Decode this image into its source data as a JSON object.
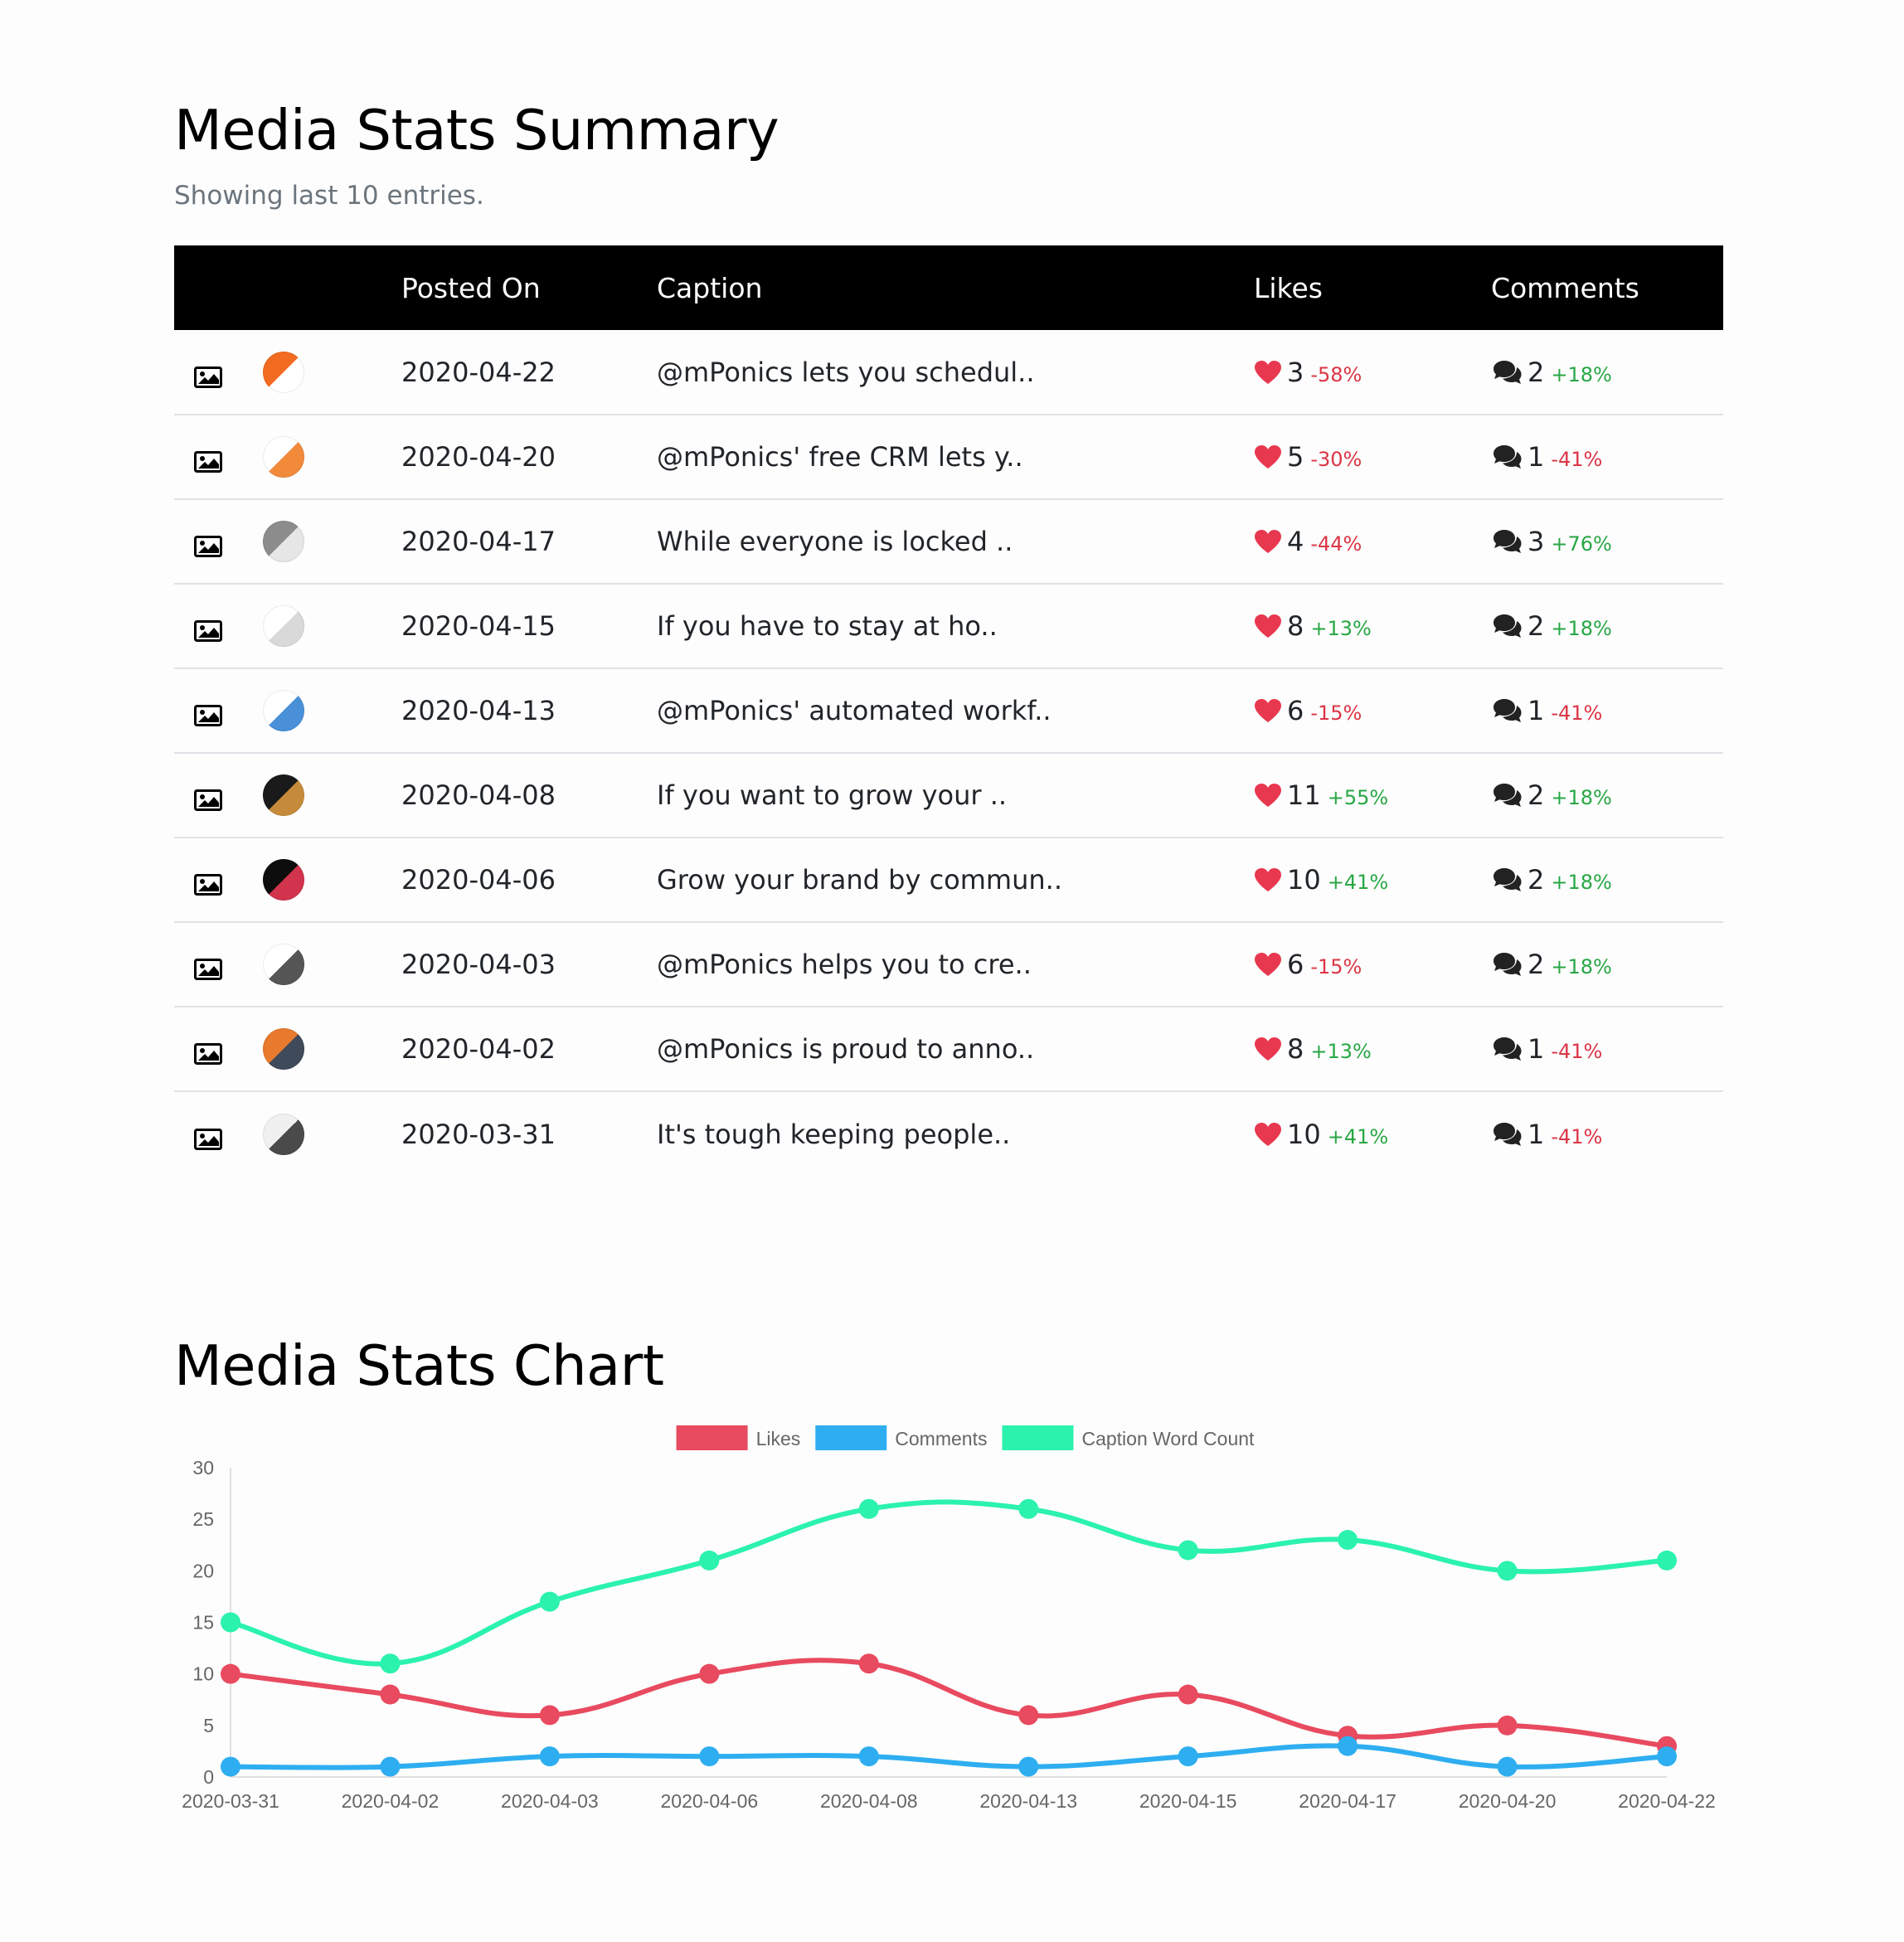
{
  "summary": {
    "title": "Media Stats Summary",
    "subtitle": "Showing last 10 entries."
  },
  "table": {
    "headers": {
      "type": "",
      "thumb": "",
      "posted_on": "Posted On",
      "caption": "Caption",
      "likes": "Likes",
      "comments": "Comments"
    },
    "rows": [
      {
        "date": "2020-04-22",
        "caption": "@mPonics lets you schedul..",
        "likes": "3",
        "likes_pct": "-58%",
        "comments": "2",
        "comments_pct": "+18%",
        "thumb_colors": [
          "#f26b21",
          "#ffffff"
        ]
      },
      {
        "date": "2020-04-20",
        "caption": "@mPonics' free CRM lets y..",
        "likes": "5",
        "likes_pct": "-30%",
        "comments": "1",
        "comments_pct": "-41%",
        "thumb_colors": [
          "#ffffff",
          "#f28a3c"
        ]
      },
      {
        "date": "2020-04-17",
        "caption": "While everyone is locked ..",
        "likes": "4",
        "likes_pct": "-44%",
        "comments": "3",
        "comments_pct": "+76%",
        "thumb_colors": [
          "#8c8c8c",
          "#e6e6e6"
        ]
      },
      {
        "date": "2020-04-15",
        "caption": "If you have to stay at ho..",
        "likes": "8",
        "likes_pct": "+13%",
        "comments": "2",
        "comments_pct": "+18%",
        "thumb_colors": [
          "#ffffff",
          "#d9d9d9"
        ]
      },
      {
        "date": "2020-04-13",
        "caption": "@mPonics' automated workf..",
        "likes": "6",
        "likes_pct": "-15%",
        "comments": "1",
        "comments_pct": "-41%",
        "thumb_colors": [
          "#ffffff",
          "#4a90d9"
        ]
      },
      {
        "date": "2020-04-08",
        "caption": "If you want to grow your ..",
        "likes": "11",
        "likes_pct": "+55%",
        "comments": "2",
        "comments_pct": "+18%",
        "thumb_colors": [
          "#1a1a1a",
          "#c68b3a"
        ]
      },
      {
        "date": "2020-04-06",
        "caption": "Grow your brand by commun..",
        "likes": "10",
        "likes_pct": "+41%",
        "comments": "2",
        "comments_pct": "+18%",
        "thumb_colors": [
          "#0d0d0d",
          "#d1344c"
        ]
      },
      {
        "date": "2020-04-03",
        "caption": "@mPonics helps you to cre..",
        "likes": "6",
        "likes_pct": "-15%",
        "comments": "2",
        "comments_pct": "+18%",
        "thumb_colors": [
          "#ffffff",
          "#555555"
        ]
      },
      {
        "date": "2020-04-02",
        "caption": "@mPonics is proud to anno..",
        "likes": "8",
        "likes_pct": "+13%",
        "comments": "1",
        "comments_pct": "-41%",
        "thumb_colors": [
          "#e87a2d",
          "#3f4a5a"
        ]
      },
      {
        "date": "2020-03-31",
        "caption": "It's tough keeping people..",
        "likes": "10",
        "likes_pct": "+41%",
        "comments": "1",
        "comments_pct": "-41%",
        "thumb_colors": [
          "#f0f0f0",
          "#4a4a4a"
        ]
      }
    ]
  },
  "chart_section": {
    "title": "Media Stats Chart"
  },
  "chart_data": {
    "type": "line",
    "title": "Media Stats Chart",
    "xlabel": "",
    "ylabel": "",
    "ylim": [
      0,
      30
    ],
    "yticks": [
      0,
      5,
      10,
      15,
      20,
      25,
      30
    ],
    "grid": false,
    "legend_position": "top",
    "categories": [
      "2020-03-31",
      "2020-04-02",
      "2020-04-03",
      "2020-04-06",
      "2020-04-08",
      "2020-04-13",
      "2020-04-15",
      "2020-04-17",
      "2020-04-20",
      "2020-04-22"
    ],
    "series": [
      {
        "name": "Likes",
        "color": "#e84a5f",
        "values": [
          10,
          8,
          6,
          10,
          11,
          6,
          8,
          4,
          5,
          3
        ]
      },
      {
        "name": "Comments",
        "color": "#2eaef0",
        "values": [
          1,
          1,
          2,
          2,
          2,
          1,
          2,
          3,
          1,
          2
        ]
      },
      {
        "name": "Caption Word Count",
        "color": "#2bf2ad",
        "values": [
          15,
          11,
          17,
          21,
          26,
          26,
          22,
          23,
          20,
          21
        ]
      }
    ]
  },
  "colors": {
    "header_bg": "#000000",
    "up": "#28a745",
    "down": "#dc3545",
    "heart": "#e8384f"
  },
  "icons": {
    "media_type": "image-icon",
    "likes": "heart-icon",
    "comments": "comments-icon"
  }
}
